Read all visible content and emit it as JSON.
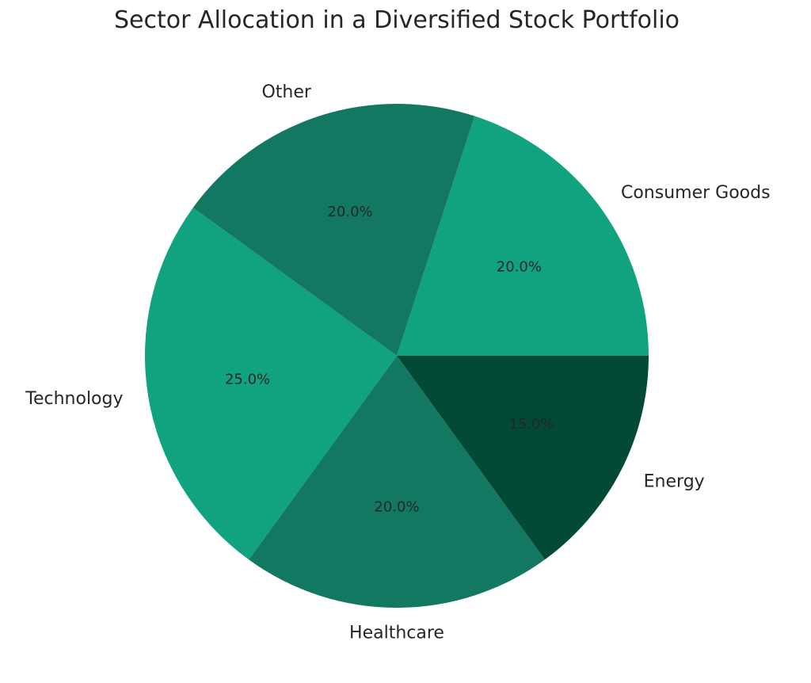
{
  "chart_data": {
    "type": "pie",
    "title": "Sector Allocation in a Diversified Stock Portfolio",
    "slices": [
      {
        "label": "Consumer Goods",
        "value": 20.0,
        "pct_label": "20.0%",
        "color": "#11a37f"
      },
      {
        "label": "Energy",
        "value": 15.0,
        "pct_label": "15.0%",
        "color": "#034a36"
      },
      {
        "label": "Healthcare",
        "value": 20.0,
        "pct_label": "20.0%",
        "color": "#137862"
      },
      {
        "label": "Technology",
        "value": 25.0,
        "pct_label": "25.0%",
        "color": "#11a37f"
      },
      {
        "label": "Other",
        "value": 20.0,
        "pct_label": "20.0%",
        "color": "#137862"
      }
    ],
    "start_angle_deg": 72,
    "direction": "clockwise"
  }
}
